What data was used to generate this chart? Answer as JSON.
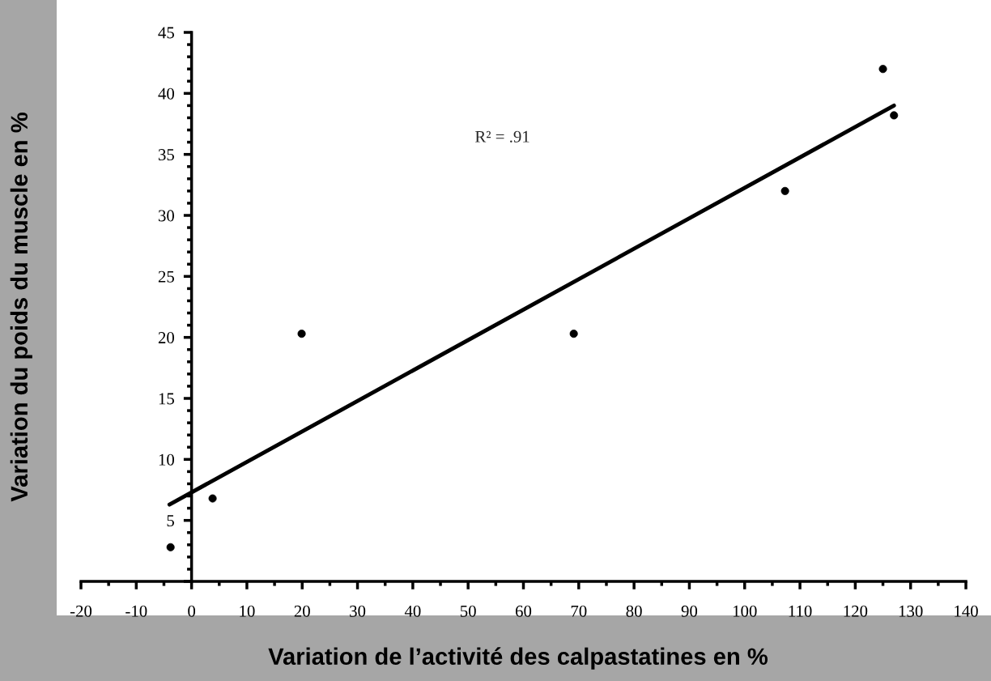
{
  "chart_data": {
    "type": "scatter",
    "xlabel": "Variation de l’activité des calpastatines en %",
    "ylabel": "Variation du poids du muscle en %",
    "annotations": [
      "R² = .91"
    ],
    "series": [
      {
        "color": "#000000",
        "marker": "circle",
        "x": [
          -3.8,
          3.8,
          19.9,
          69.1,
          107.3,
          125,
          127
        ],
        "values": [
          2.8,
          6.8,
          20.3,
          20.3,
          32,
          42,
          38.2
        ]
      },
      {
        "type": "line",
        "color": "#000000",
        "x": [
          -4,
          127
        ],
        "values": [
          6.3,
          39.0
        ]
      }
    ],
    "xlim": [
      -20,
      140
    ],
    "ylim": [
      0,
      45
    ],
    "xticks": [
      -20,
      -10,
      0,
      10,
      20,
      30,
      40,
      50,
      60,
      70,
      80,
      90,
      100,
      110,
      120,
      130,
      140
    ],
    "yticks": [
      {
        "value": 0,
        "label": null
      },
      5,
      10,
      15,
      20,
      25,
      30,
      35,
      40,
      45
    ],
    "grid": false,
    "legend": false
  }
}
